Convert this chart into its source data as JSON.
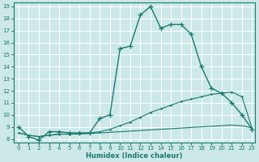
{
  "xlabel": "Humidex (Indice chaleur)",
  "bg_color": "#cce8e8",
  "grid_color": "#ffffff",
  "line_color": "#1a7a6e",
  "x_min": 0,
  "x_max": 23,
  "y_min": 8,
  "y_max": 19,
  "yticks": [
    8,
    9,
    10,
    11,
    12,
    13,
    14,
    15,
    16,
    17,
    18,
    19
  ],
  "xticks": [
    0,
    1,
    2,
    3,
    4,
    5,
    6,
    7,
    8,
    9,
    10,
    11,
    12,
    13,
    14,
    15,
    16,
    17,
    18,
    19,
    20,
    21,
    22,
    23
  ],
  "line1_x": [
    0,
    1,
    2,
    3,
    4,
    5,
    6,
    7,
    8,
    9,
    10,
    11,
    12,
    13,
    14,
    15,
    16,
    17,
    18,
    19,
    20,
    21,
    22,
    23
  ],
  "line1_y": [
    9.0,
    8.2,
    7.9,
    8.6,
    8.6,
    8.5,
    8.5,
    8.5,
    9.7,
    10.0,
    15.5,
    15.7,
    18.3,
    19.0,
    17.2,
    17.5,
    17.5,
    16.7,
    14.0,
    12.2,
    11.8,
    11.0,
    10.0,
    8.8
  ],
  "line2_x": [
    0,
    1,
    2,
    3,
    4,
    5,
    6,
    7,
    8,
    9,
    10,
    11,
    12,
    13,
    14,
    15,
    16,
    17,
    18,
    19,
    20,
    21,
    22,
    23
  ],
  "line2_y": [
    8.5,
    8.3,
    8.2,
    8.3,
    8.4,
    8.4,
    8.4,
    8.45,
    8.5,
    8.55,
    8.6,
    8.65,
    8.7,
    8.75,
    8.8,
    8.85,
    8.9,
    8.95,
    9.0,
    9.05,
    9.1,
    9.15,
    9.1,
    8.9
  ],
  "line3_x": [
    0,
    1,
    2,
    3,
    4,
    5,
    6,
    7,
    8,
    9,
    10,
    11,
    12,
    13,
    14,
    15,
    16,
    17,
    18,
    19,
    20,
    21,
    22,
    23
  ],
  "line3_y": [
    8.5,
    8.3,
    8.2,
    8.3,
    8.4,
    8.4,
    8.45,
    8.5,
    8.6,
    8.8,
    9.1,
    9.4,
    9.8,
    10.2,
    10.5,
    10.8,
    11.1,
    11.3,
    11.5,
    11.7,
    11.8,
    11.9,
    11.5,
    8.9
  ]
}
